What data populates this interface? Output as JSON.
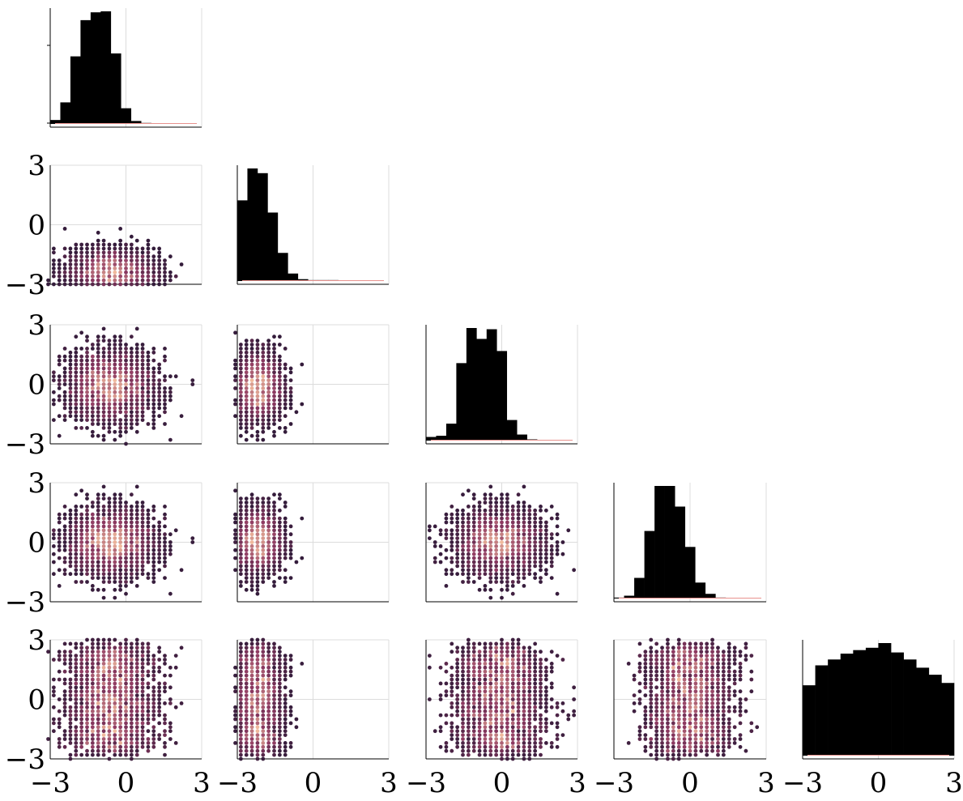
{
  "chart_data": {
    "type": "pairplot",
    "layout": "lower-triangular corner grid",
    "n_variables": 5,
    "title": "",
    "axis_range": [
      -3,
      3
    ],
    "ticks": [
      -3,
      0,
      3
    ],
    "tick_labels": [
      "−3",
      "0",
      "3"
    ],
    "grid": true,
    "legend": "none",
    "colors": {
      "histogram_bars": "#000000",
      "hexbin_low": "#2a1937",
      "hexbin_mid": "#8f3a62",
      "hexbin_high": "#f0b99c",
      "grid": "#dcdcdc",
      "kde_trace": "#e8928e"
    },
    "diagonal_histograms": [
      {
        "variable": 1,
        "bin_edges": [
          -3.0,
          -2.6,
          -2.2,
          -1.8,
          -1.4,
          -1.0,
          -0.6,
          -0.2,
          0.2,
          0.6,
          1.0,
          1.4,
          1.8,
          2.2,
          2.6,
          3.0
        ],
        "counts": [
          4,
          22,
          69,
          106,
          114,
          115,
          72,
          16,
          3,
          1,
          0,
          0,
          0,
          0,
          0
        ]
      },
      {
        "variable": 2,
        "bin_edges": [
          -3.0,
          -2.6,
          -2.2,
          -1.8,
          -1.4,
          -1.0,
          -0.6,
          -0.2,
          0.2,
          0.6,
          1.0,
          1.4,
          1.8,
          2.2,
          2.6,
          3.0
        ],
        "counts": [
          86,
          120,
          115,
          73,
          30,
          8,
          2,
          1,
          1,
          1,
          0,
          0,
          0,
          0,
          0
        ]
      },
      {
        "variable": 3,
        "bin_edges": [
          -3.0,
          -2.6,
          -2.2,
          -1.8,
          -1.4,
          -1.0,
          -0.6,
          -0.2,
          0.2,
          0.6,
          1.0,
          1.4,
          1.8,
          2.2,
          2.6,
          3.0
        ],
        "counts": [
          3,
          4,
          14,
          64,
          93,
          84,
          92,
          74,
          17,
          5,
          1,
          0,
          0,
          0,
          0
        ]
      },
      {
        "variable": 4,
        "bin_edges": [
          -3.0,
          -2.6,
          -2.2,
          -1.8,
          -1.4,
          -1.0,
          -0.6,
          -0.2,
          0.2,
          0.6,
          1.0,
          1.4,
          1.8,
          2.2,
          2.6,
          3.0
        ],
        "counts": [
          1,
          3,
          22,
          72,
          120,
          120,
          98,
          55,
          17,
          5,
          1,
          0,
          0,
          0,
          0
        ]
      },
      {
        "variable": 5,
        "bin_edges": [
          -3.0,
          -2.5,
          -2.0,
          -1.5,
          -1.0,
          -0.5,
          0.0,
          0.5,
          1.0,
          1.5,
          2.0,
          2.5,
          3.0
        ],
        "counts": [
          60,
          77,
          82,
          87,
          90,
          92,
          96,
          88,
          82,
          75,
          69,
          62
        ]
      }
    ],
    "offdiagonal_hexbin": [
      {
        "row": 2,
        "col": 1,
        "x_center": -0.6,
        "x_spread": 0.9,
        "y_center": -2.4,
        "y_spread": 0.6,
        "y_clip": [
          -3.0,
          3.0
        ]
      },
      {
        "row": 3,
        "col": 1,
        "x_center": -0.6,
        "x_spread": 0.9,
        "y_center": -0.1,
        "y_spread": 0.9,
        "y_clip": [
          -3.0,
          3.0
        ]
      },
      {
        "row": 3,
        "col": 2,
        "x_center": -2.2,
        "x_spread": 0.5,
        "y_center": -0.1,
        "y_spread": 0.9,
        "y_clip": [
          -3.0,
          3.0
        ]
      },
      {
        "row": 4,
        "col": 1,
        "x_center": -0.6,
        "x_spread": 0.9,
        "y_center": 0.0,
        "y_spread": 0.85,
        "y_clip": [
          -3.0,
          3.0
        ]
      },
      {
        "row": 4,
        "col": 2,
        "x_center": -2.2,
        "x_spread": 0.5,
        "y_center": 0.1,
        "y_spread": 0.85,
        "y_clip": [
          -3.0,
          3.0
        ]
      },
      {
        "row": 4,
        "col": 3,
        "x_center": -0.1,
        "x_spread": 0.9,
        "y_center": 0.0,
        "y_spread": 0.85,
        "y_clip": [
          -3.0,
          3.0
        ]
      },
      {
        "row": 5,
        "col": 1,
        "x_center": -0.6,
        "x_spread": 0.9,
        "y_center": 0.0,
        "y_spread": 1.8,
        "y_clip": [
          -3.0,
          3.0
        ]
      },
      {
        "row": 5,
        "col": 2,
        "x_center": -2.2,
        "x_spread": 0.5,
        "y_center": 0.0,
        "y_spread": 1.8,
        "y_clip": [
          -3.0,
          3.0
        ]
      },
      {
        "row": 5,
        "col": 3,
        "x_center": -0.1,
        "x_spread": 0.9,
        "y_center": 0.0,
        "y_spread": 1.8,
        "y_clip": [
          -3.0,
          3.0
        ]
      },
      {
        "row": 5,
        "col": 4,
        "x_center": 0.0,
        "x_spread": 0.85,
        "y_center": 0.0,
        "y_spread": 1.8,
        "y_clip": [
          -3.0,
          3.0
        ]
      }
    ]
  }
}
